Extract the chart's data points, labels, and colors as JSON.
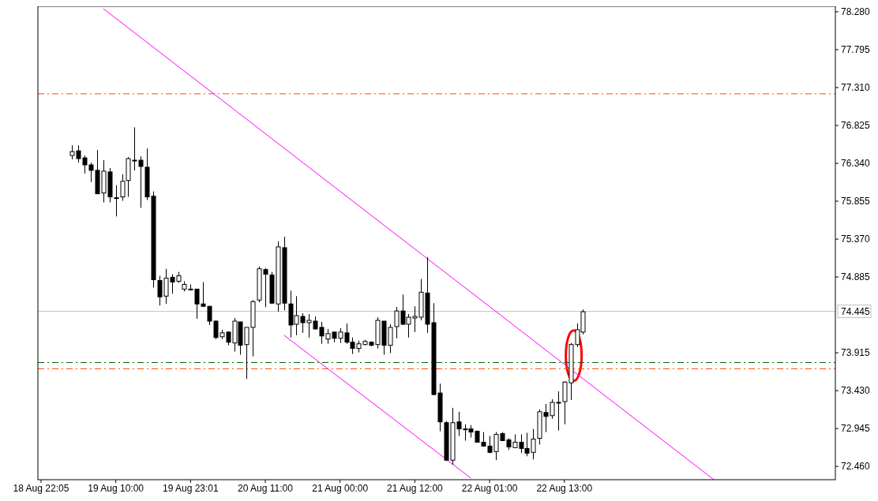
{
  "chart_data": {
    "type": "candlestick",
    "color": "#000000",
    "categories": [
      "18 Aug 22:05",
      null,
      null,
      null,
      null,
      null,
      null,
      null,
      null,
      null,
      null,
      null,
      "19 Aug 10:00",
      null,
      null,
      null,
      null,
      null,
      null,
      null,
      null,
      null,
      null,
      null,
      "19 Aug 23:01",
      null,
      null,
      null,
      null,
      null,
      null,
      null,
      null,
      null,
      null,
      null,
      "20 Aug 11:00",
      null,
      null,
      null,
      null,
      null,
      null,
      null,
      null,
      null,
      null,
      null,
      "21 Aug 00:00",
      null,
      null,
      null,
      null,
      null,
      null,
      null,
      null,
      null,
      null,
      null,
      "21 Aug 12:00",
      null,
      null,
      null,
      null,
      null,
      null,
      null,
      null,
      null,
      null,
      null,
      "22 Aug 01:00",
      null,
      null,
      null,
      null,
      null,
      null,
      null,
      null,
      null,
      null,
      null,
      "22 Aug 13:00",
      null,
      null,
      null,
      null,
      null,
      null,
      null,
      null,
      null,
      null,
      null,
      null,
      null,
      null,
      null,
      null,
      null,
      null,
      null,
      null,
      null,
      null,
      null,
      null,
      null,
      null,
      null,
      null,
      null,
      null,
      null,
      null,
      null,
      null,
      null,
      null,
      null,
      null,
      null,
      null,
      null,
      null,
      null
    ],
    "ohlc": [
      null,
      null,
      null,
      null,
      null,
      [
        76.44,
        76.57,
        76.39,
        76.49
      ],
      [
        76.5,
        76.57,
        76.35,
        76.4
      ],
      [
        76.41,
        76.44,
        76.21,
        76.32
      ],
      [
        76.32,
        76.35,
        76.1,
        76.25
      ],
      [
        76.25,
        76.51,
        75.95,
        75.95
      ],
      [
        75.96,
        76.38,
        75.84,
        76.24
      ],
      [
        76.23,
        76.28,
        75.84,
        75.91
      ],
      [
        75.9,
        76.06,
        75.66,
        75.9
      ],
      [
        75.91,
        76.2,
        75.86,
        76.11
      ],
      [
        76.12,
        76.42,
        75.91,
        76.4
      ],
      [
        76.38,
        76.8,
        76.25,
        76.38
      ],
      [
        76.38,
        76.43,
        75.77,
        76.3
      ],
      [
        76.29,
        76.53,
        75.87,
        75.91
      ],
      [
        75.92,
        75.98,
        74.75,
        74.85
      ],
      [
        74.84,
        74.9,
        74.52,
        74.63
      ],
      [
        74.64,
        74.99,
        74.54,
        74.87
      ],
      [
        74.88,
        74.92,
        74.67,
        74.82
      ],
      [
        74.83,
        74.95,
        74.81,
        74.9
      ],
      [
        74.73,
        74.83,
        74.7,
        74.79
      ],
      [
        74.73,
        74.79,
        74.71,
        74.73
      ],
      [
        74.73,
        74.73,
        74.35,
        74.54
      ],
      [
        74.54,
        74.82,
        74.5,
        74.51
      ],
      [
        74.51,
        74.51,
        74.27,
        74.32
      ],
      [
        74.32,
        74.33,
        74.09,
        74.11
      ],
      [
        74.12,
        74.21,
        74.09,
        74.17
      ],
      [
        74.18,
        74.18,
        74.01,
        74.05
      ],
      [
        74.04,
        74.36,
        73.93,
        74.32
      ],
      [
        74.31,
        74.31,
        73.89,
        74.01
      ],
      [
        74.02,
        74.24,
        73.58,
        74.24
      ],
      [
        74.24,
        74.59,
        73.87,
        74.57
      ],
      [
        74.59,
        75.02,
        74.56,
        74.99
      ],
      [
        74.98,
        75.0,
        74.5,
        74.92
      ],
      [
        74.91,
        74.95,
        74.54,
        74.55
      ],
      [
        74.54,
        75.34,
        74.44,
        75.27
      ],
      [
        75.26,
        75.4,
        74.46,
        74.55
      ],
      [
        74.54,
        74.71,
        74.11,
        74.27
      ],
      [
        74.28,
        74.64,
        74.14,
        74.39
      ],
      [
        74.38,
        74.42,
        74.17,
        74.3
      ],
      [
        74.3,
        74.41,
        74.11,
        74.33
      ],
      [
        74.32,
        74.38,
        74.21,
        74.22
      ],
      [
        74.24,
        74.31,
        74.03,
        74.13
      ],
      [
        74.09,
        74.22,
        74.03,
        74.16
      ],
      [
        74.18,
        74.18,
        74.05,
        74.1
      ],
      [
        74.1,
        74.23,
        74.04,
        74.18
      ],
      [
        74.17,
        74.29,
        74.03,
        74.05
      ],
      [
        74.05,
        74.11,
        73.9,
        73.97
      ],
      [
        73.97,
        74.07,
        73.92,
        74.03
      ],
      [
        74.02,
        74.08,
        74.01,
        74.06
      ],
      [
        74.05,
        74.06,
        74.0,
        74.01
      ],
      [
        74.02,
        74.37,
        73.97,
        74.33
      ],
      [
        74.32,
        74.32,
        73.89,
        74.01
      ],
      [
        74.01,
        74.28,
        73.91,
        74.24
      ],
      [
        74.25,
        74.5,
        74.1,
        74.45
      ],
      [
        74.45,
        74.66,
        74.27,
        74.28
      ],
      [
        74.28,
        74.41,
        74.11,
        74.37
      ],
      [
        74.36,
        74.51,
        74.18,
        74.38
      ],
      [
        74.37,
        74.86,
        74.33,
        74.69
      ],
      [
        74.68,
        75.14,
        74.17,
        74.28
      ],
      [
        74.3,
        74.55,
        73.37,
        73.38
      ],
      [
        73.4,
        73.52,
        72.91,
        73.03
      ],
      [
        73.02,
        73.04,
        72.53,
        72.54
      ],
      [
        72.54,
        73.21,
        72.48,
        73.02
      ],
      [
        73.03,
        73.16,
        72.85,
        72.94
      ],
      [
        72.94,
        73.0,
        72.79,
        72.93
      ],
      [
        72.94,
        72.99,
        72.83,
        72.9
      ],
      [
        72.91,
        72.92,
        72.77,
        72.77
      ],
      [
        72.77,
        72.9,
        72.72,
        72.72
      ],
      [
        72.72,
        72.85,
        72.63,
        72.64
      ],
      [
        72.65,
        72.9,
        72.54,
        72.87
      ],
      [
        72.88,
        72.9,
        72.79,
        72.79
      ],
      [
        72.8,
        72.82,
        72.67,
        72.71
      ],
      [
        72.7,
        72.87,
        72.7,
        72.77
      ],
      [
        72.77,
        72.87,
        72.63,
        72.69
      ],
      [
        72.69,
        72.89,
        72.59,
        72.63
      ],
      [
        72.64,
        72.94,
        72.55,
        72.81
      ],
      [
        72.82,
        73.19,
        72.74,
        73.16
      ],
      [
        73.15,
        73.26,
        72.9,
        73.1
      ],
      [
        73.11,
        73.32,
        73.07,
        73.28
      ],
      [
        73.28,
        73.42,
        72.92,
        73.28
      ],
      [
        73.29,
        73.55,
        73.0,
        73.54
      ],
      [
        73.53,
        74.04,
        73.31,
        74.02
      ],
      [
        74.02,
        74.29,
        73.99,
        74.21
      ],
      [
        74.18,
        74.47,
        74.15,
        74.44
      ],
      null,
      null,
      null,
      null,
      null,
      null,
      null,
      null,
      null,
      null,
      null,
      null,
      null,
      null,
      null,
      null,
      null,
      null,
      null,
      null,
      null,
      null,
      null,
      null,
      null,
      null,
      null,
      null,
      null,
      null,
      null,
      null,
      null,
      null,
      null,
      null,
      null,
      null,
      null,
      null
    ],
    "series": [
      {
        "type": "line",
        "color": "#ff00ff",
        "values": [
          null,
          null,
          null,
          null,
          null,
          null,
          null,
          null,
          null,
          null,
          78.32,
          null,
          null,
          null,
          null,
          null,
          null,
          null,
          null,
          null,
          null,
          null,
          null,
          null,
          null,
          null,
          null,
          null,
          null,
          null,
          null,
          null,
          null,
          null,
          null,
          null,
          null,
          null,
          null,
          null,
          null,
          null,
          null,
          null,
          null,
          null,
          null,
          null,
          null,
          null,
          null,
          null,
          null,
          null,
          null,
          null,
          null,
          null,
          null,
          null,
          null,
          null,
          null,
          null,
          null,
          null,
          null,
          null,
          null,
          null,
          null,
          null,
          null,
          null,
          null,
          null,
          null,
          null,
          null,
          null,
          null,
          null,
          null,
          null,
          null,
          null,
          null,
          null,
          null,
          null,
          null,
          null,
          null,
          null,
          null,
          null,
          null,
          null,
          null,
          null,
          null,
          null,
          null,
          null,
          null,
          null,
          null,
          null,
          72.29,
          null,
          null,
          null,
          null,
          null,
          null,
          null,
          null,
          null,
          null,
          null,
          null,
          null,
          null,
          null,
          null,
          null,
          null,
          null
        ]
      },
      {
        "type": "line",
        "color": "#ff00ff",
        "values": [
          null,
          null,
          null,
          null,
          null,
          null,
          null,
          null,
          null,
          null,
          null,
          null,
          null,
          null,
          null,
          null,
          null,
          null,
          null,
          null,
          null,
          null,
          null,
          null,
          null,
          null,
          null,
          null,
          null,
          null,
          null,
          null,
          null,
          null,
          null,
          null,
          null,
          null,
          null,
          74.14,
          null,
          null,
          null,
          null,
          null,
          null,
          null,
          null,
          null,
          null,
          null,
          null,
          null,
          null,
          null,
          null,
          null,
          null,
          null,
          null,
          null,
          null,
          null,
          null,
          null,
          null,
          null,
          null,
          null,
          72.31,
          null,
          null,
          null,
          null,
          null,
          null,
          null,
          null,
          null,
          null,
          null,
          null,
          null,
          null,
          null,
          null,
          null,
          null,
          null,
          null,
          null,
          null,
          null,
          null,
          null,
          null,
          null,
          null,
          null,
          null,
          null,
          null,
          null,
          null,
          null,
          null,
          null,
          null,
          null,
          null,
          null,
          null,
          null,
          null,
          null,
          null,
          null,
          null,
          null,
          null,
          null,
          null,
          null,
          null,
          null,
          null,
          null,
          null
        ]
      }
    ],
    "ylim": [
      72.29,
      78.35
    ],
    "yticks": [
      {
        "value": 78.28,
        "label": "78.280"
      },
      {
        "value": 77.795,
        "label": "77.795"
      },
      {
        "value": 77.31,
        "label": "77.310"
      },
      {
        "value": 76.825,
        "label": "76.825"
      },
      {
        "value": 76.34,
        "label": "76.340"
      },
      {
        "value": 75.855,
        "label": "75.855"
      },
      {
        "value": 75.37,
        "label": "75.370"
      },
      {
        "value": 74.885,
        "label": "74.885"
      },
      {
        "value": 73.915,
        "label": "73.915"
      },
      {
        "value": 73.43,
        "label": "73.430"
      },
      {
        "value": 72.945,
        "label": "72.945"
      },
      {
        "value": 72.46,
        "label": "72.460"
      }
    ],
    "ref_lines": [
      {
        "axis": "y",
        "value": 77.23,
        "color": "#ff4500",
        "line_style": "dashed"
      },
      {
        "axis": "y",
        "value": 74.445,
        "label": "74.445",
        "color": "#c0c0c0",
        "line_style": "solid"
      },
      {
        "axis": "y",
        "value": 73.79,
        "color": "#006400",
        "line_style": "dashed"
      },
      {
        "axis": "y",
        "value": 73.71,
        "color": "#ff4500",
        "line_style": "dashed"
      }
    ],
    "grid": false
  }
}
